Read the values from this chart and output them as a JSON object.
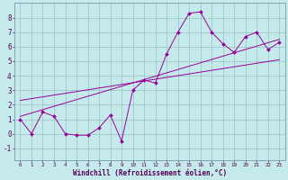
{
  "title": "",
  "xlabel": "Windchill (Refroidissement éolien,°C)",
  "ylabel": "",
  "bg_color": "#c5eaec",
  "line_color": "#990099",
  "xlim": [
    -0.5,
    23.5
  ],
  "ylim": [
    -1.8,
    9.0
  ],
  "yticks": [
    -1,
    0,
    1,
    2,
    3,
    4,
    5,
    6,
    7,
    8
  ],
  "xticks": [
    0,
    1,
    2,
    3,
    4,
    5,
    6,
    7,
    8,
    9,
    10,
    11,
    12,
    13,
    14,
    15,
    16,
    17,
    18,
    19,
    20,
    21,
    22,
    23
  ],
  "data_x": [
    0,
    1,
    2,
    3,
    4,
    5,
    6,
    7,
    8,
    9,
    10,
    11,
    12,
    13,
    14,
    15,
    16,
    17,
    18,
    19,
    20,
    21,
    22,
    23
  ],
  "data_y": [
    1.0,
    0.0,
    1.5,
    1.2,
    0.0,
    -0.1,
    -0.1,
    0.4,
    1.3,
    -0.5,
    3.0,
    3.7,
    3.5,
    5.5,
    7.0,
    8.3,
    8.4,
    7.0,
    6.2,
    5.6,
    6.7,
    7.0,
    5.8,
    6.3
  ],
  "trend1_x": [
    0,
    23
  ],
  "trend1_y": [
    1.2,
    6.5
  ],
  "trend2_x": [
    0,
    23
  ],
  "trend2_y": [
    2.3,
    5.1
  ],
  "grid_color": "#9bbfc2",
  "xlabel_fontsize": 5.5
}
